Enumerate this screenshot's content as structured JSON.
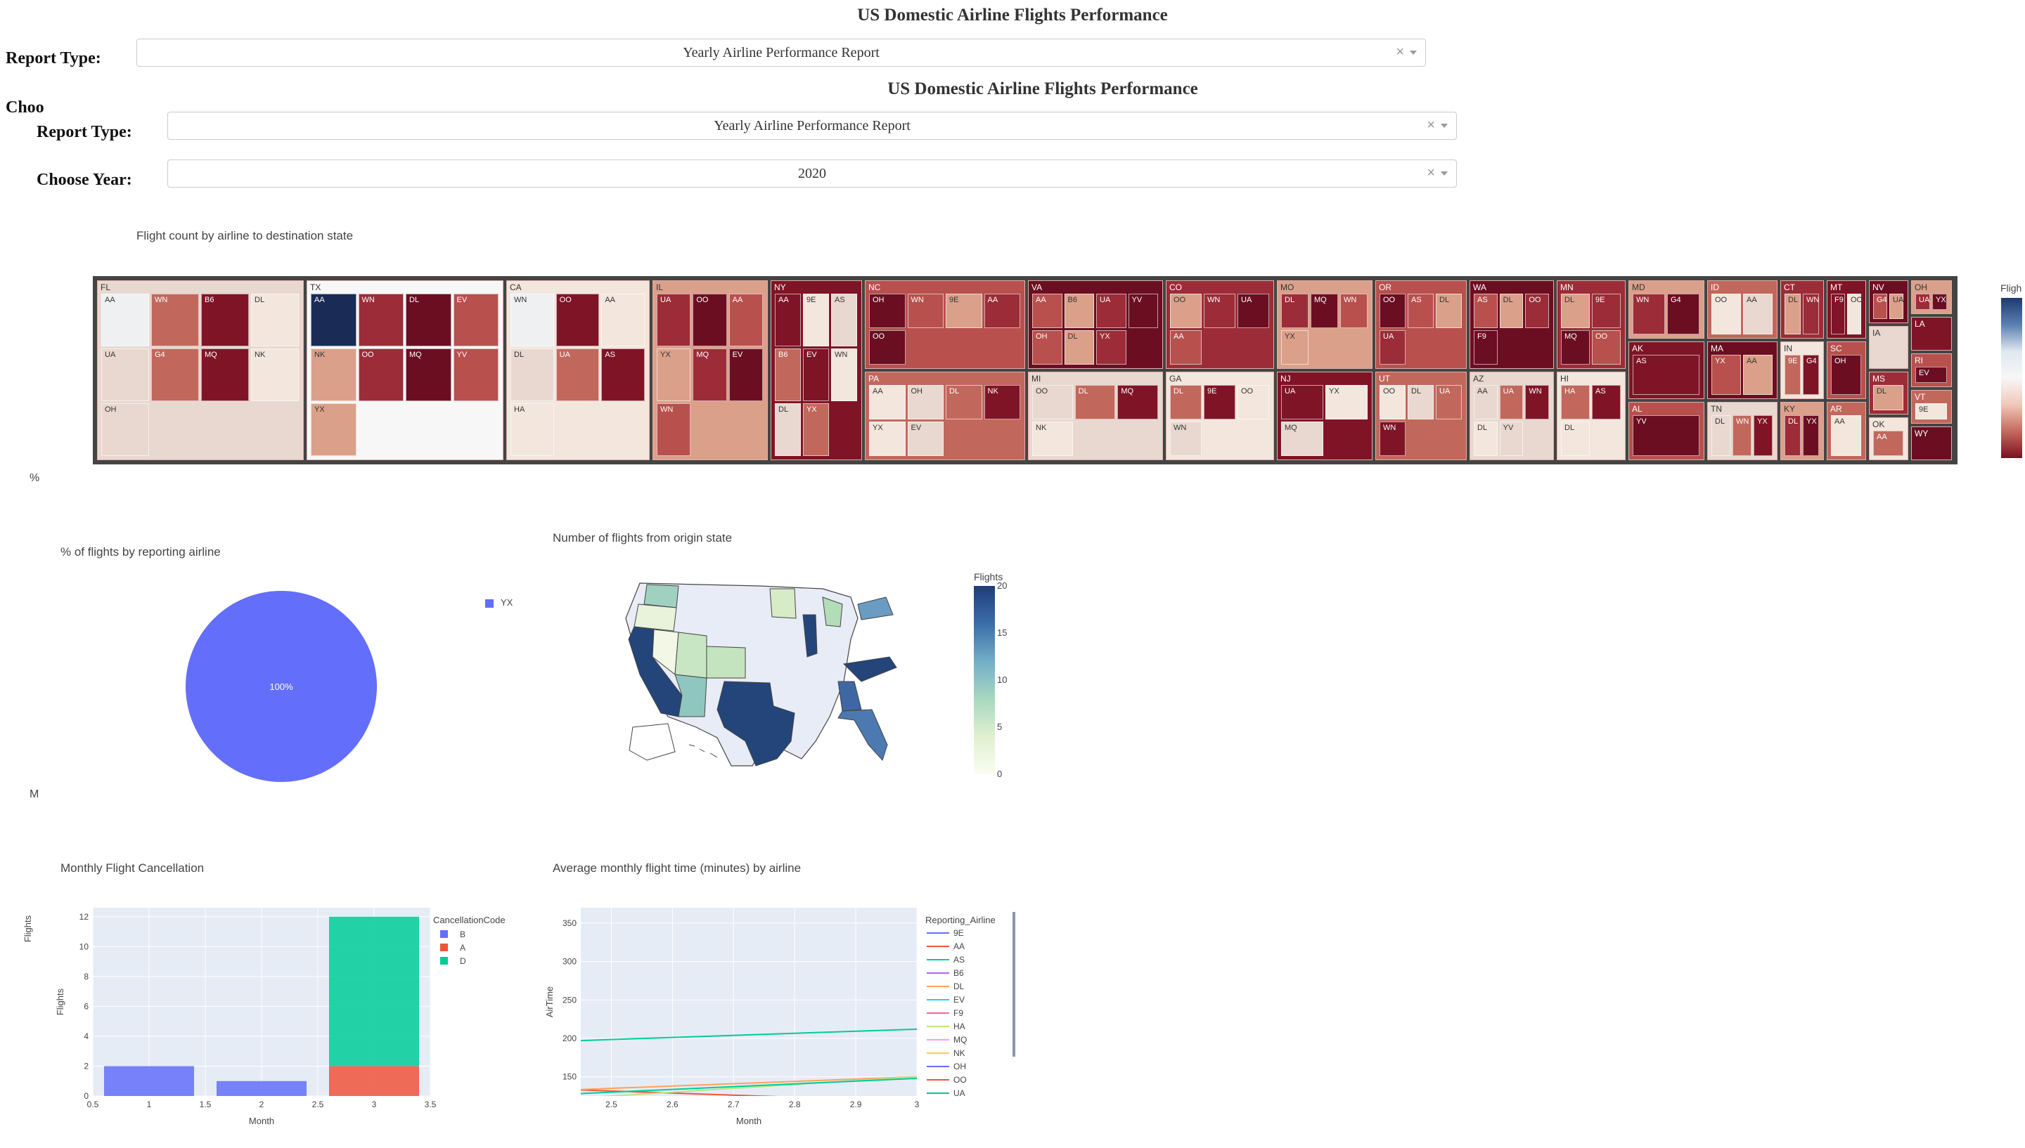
{
  "outer": {
    "title": "US Domestic Airline Flights Performance",
    "report_type_label": "Report Type:",
    "report_type_value": "Yearly Airline Performance Report",
    "choose_year_partial": "Choo"
  },
  "inner": {
    "title": "US Domestic Airline Flights Performance",
    "report_type_label": "Report Type:",
    "report_type_value": "Yearly Airline Performance Report",
    "choose_year_label": "Choose Year:",
    "choose_year_value": "2020",
    "clear_symbol": "×"
  },
  "side_fragments": {
    "a": "%",
    "b": "M"
  },
  "treemap": {
    "title": "Flight count by airline to destination state",
    "colorbar_label": "Fligh",
    "colors": {
      "frame": "#444444"
    },
    "states": [
      {
        "name": "FL",
        "airlines": [
          "AA",
          "WN",
          "B6",
          "DL",
          "UA",
          "G4",
          "MQ",
          "NK",
          "OH"
        ]
      },
      {
        "name": "TX",
        "airlines": [
          "AA",
          "WN",
          "DL",
          "EV",
          "NK",
          "OO",
          "MQ",
          "YV",
          "YX"
        ]
      },
      {
        "name": "CA",
        "airlines": [
          "WN",
          "OO",
          "AA",
          "DL",
          "UA",
          "AS",
          "HA"
        ]
      },
      {
        "name": "IL",
        "airlines": [
          "UA",
          "OO",
          "AA",
          "YX",
          "MQ",
          "EV",
          "WN"
        ]
      },
      {
        "name": "NY",
        "airlines": [
          "AA",
          "9E",
          "AS",
          "B6",
          "EV",
          "WN",
          "DL",
          "YX"
        ]
      },
      {
        "name": "NC",
        "airlines": [
          "OH",
          "WN",
          "9E",
          "AA",
          "OO"
        ]
      },
      {
        "name": "PA",
        "airlines": [
          "AA",
          "OH",
          "DL",
          "NK",
          "YX",
          "EV"
        ]
      },
      {
        "name": "VA",
        "airlines": [
          "AA",
          "B6",
          "UA",
          "YV",
          "OH",
          "DL",
          "YX"
        ]
      },
      {
        "name": "MI",
        "airlines": [
          "OO",
          "DL",
          "MQ",
          "NK"
        ]
      },
      {
        "name": "CO",
        "airlines": [
          "OO",
          "WN",
          "UA",
          "AA"
        ]
      },
      {
        "name": "GA",
        "airlines": [
          "DL",
          "9E",
          "OO",
          "WN"
        ]
      },
      {
        "name": "MO",
        "airlines": [
          "DL",
          "MQ",
          "WN",
          "YX"
        ]
      },
      {
        "name": "NJ",
        "airlines": [
          "UA",
          "YX",
          "MQ"
        ]
      },
      {
        "name": "OR",
        "airlines": [
          "OO",
          "AS",
          "DL",
          "UA"
        ]
      },
      {
        "name": "UT",
        "airlines": [
          "OO",
          "DL",
          "UA",
          "WN"
        ]
      },
      {
        "name": "WA",
        "airlines": [
          "AS",
          "DL",
          "OO",
          "F9"
        ]
      },
      {
        "name": "AZ",
        "airlines": [
          "AA",
          "UA",
          "WN",
          "DL",
          "YV"
        ]
      },
      {
        "name": "MN",
        "airlines": [
          "DL",
          "9E",
          "MQ",
          "OO"
        ]
      },
      {
        "name": "HI",
        "airlines": [
          "HA",
          "AS",
          "DL"
        ]
      },
      {
        "name": "MD",
        "airlines": [
          "WN",
          "G4"
        ]
      },
      {
        "name": "AK",
        "airlines": [
          "AS"
        ]
      },
      {
        "name": "AL",
        "airlines": [
          "YV"
        ]
      },
      {
        "name": "ID",
        "airlines": [
          "OO",
          "AA"
        ]
      },
      {
        "name": "MA",
        "airlines": [
          "YX",
          "AA"
        ]
      },
      {
        "name": "TN",
        "airlines": [
          "DL",
          "WN",
          "YX"
        ]
      },
      {
        "name": "CT",
        "airlines": [
          "DL",
          "WN"
        ]
      },
      {
        "name": "IN",
        "airlines": [
          "9E",
          "G4"
        ]
      },
      {
        "name": "KY",
        "airlines": [
          "DL",
          "YX"
        ]
      },
      {
        "name": "MT",
        "airlines": [
          "F9",
          "OO"
        ]
      },
      {
        "name": "SC",
        "airlines": [
          "OH"
        ]
      },
      {
        "name": "AR",
        "airlines": [
          "AA"
        ]
      },
      {
        "name": "NV",
        "airlines": [
          "G4",
          "UA"
        ]
      },
      {
        "name": "IA",
        "airlines": []
      },
      {
        "name": "MS",
        "airlines": [
          "DL"
        ]
      },
      {
        "name": "OK",
        "airlines": [
          "AA"
        ]
      },
      {
        "name": "OH",
        "airlines": [
          "UA",
          "YX"
        ]
      },
      {
        "name": "LA",
        "airlines": []
      },
      {
        "name": "RI",
        "airlines": [
          "EV"
        ]
      },
      {
        "name": "VT",
        "airlines": [
          "9E"
        ]
      },
      {
        "name": "WY",
        "airlines": []
      }
    ]
  },
  "pie": {
    "title": "% of flights by reporting airline",
    "slice_label": "100%",
    "legend_label": "YX",
    "color": "#636efa"
  },
  "map": {
    "title": "Number of flights from origin state",
    "colorbar_title": "Flights",
    "colorbar_ticks": [
      "20",
      "15",
      "10",
      "5",
      "0"
    ]
  },
  "chart_data": [
    {
      "type": "bar",
      "title": "Monthly Flight Cancellation",
      "xlabel": "Month",
      "ylabel": "Flights",
      "outer_ylabel": "Flights",
      "legend_title": "CancellationCode",
      "x": [
        1,
        2,
        3
      ],
      "series": [
        {
          "name": "B",
          "color": "#636efa",
          "values": [
            2,
            1,
            0
          ]
        },
        {
          "name": "A",
          "color": "#ef553b",
          "values": [
            0,
            0,
            2
          ]
        },
        {
          "name": "D",
          "color": "#00cc96",
          "values": [
            0,
            0,
            10
          ]
        }
      ],
      "xlim": [
        0.5,
        3.5
      ],
      "ylim": [
        0,
        12.6
      ],
      "xticks": [
        "0.5",
        "1",
        "1.5",
        "2",
        "2.5",
        "3",
        "3.5"
      ],
      "yticks": [
        "0",
        "2",
        "4",
        "6",
        "8",
        "10",
        "12"
      ]
    },
    {
      "type": "line",
      "title": "Average monthly flight time (minutes) by airline",
      "xlabel": "Month",
      "ylabel": "AirTime",
      "legend_title": "Reporting_Airline",
      "xlim": [
        2.45,
        3
      ],
      "ylim": [
        125,
        370
      ],
      "xticks": [
        "2.5",
        "2.6",
        "2.7",
        "2.8",
        "2.9",
        "3"
      ],
      "yticks": [
        "150",
        "200",
        "250",
        "300",
        "350"
      ],
      "series": [
        {
          "name": "9E",
          "color": "#636efa",
          "x": [
            2,
            3
          ],
          "y": [
            130,
            110
          ]
        },
        {
          "name": "AA",
          "color": "#ef553b",
          "x": [
            2,
            3
          ],
          "y": [
            145,
            118
          ]
        },
        {
          "name": "AS",
          "color": "#00cc96",
          "x": [
            2,
            3
          ],
          "y": [
            185,
            212
          ]
        },
        {
          "name": "B6",
          "color": "#ab63fa",
          "x": [
            2,
            3
          ],
          "y": [
            132,
            112
          ]
        },
        {
          "name": "DL",
          "color": "#ffa15a",
          "x": [
            2,
            3
          ],
          "y": [
            120,
            150
          ]
        },
        {
          "name": "EV",
          "color": "#19d3f3",
          "x": [
            2,
            3
          ],
          "y": [
            108,
            115
          ]
        },
        {
          "name": "F9",
          "color": "#ff6692",
          "x": [
            2,
            3
          ],
          "y": [
            115,
            122
          ]
        },
        {
          "name": "HA",
          "color": "#b6e880",
          "x": [
            2,
            3
          ],
          "y": [
            100,
            150
          ]
        },
        {
          "name": "MQ",
          "color": "#ff97ff",
          "x": [
            2,
            3
          ],
          "y": [
            102,
            108
          ]
        },
        {
          "name": "NK",
          "color": "#fecb52",
          "x": [
            2,
            3
          ],
          "y": [
            110,
            118
          ]
        },
        {
          "name": "OH",
          "color": "#636efa",
          "x": [
            2,
            3
          ],
          "y": [
            105,
            112
          ]
        },
        {
          "name": "OO",
          "color": "#ef553b",
          "x": [
            2,
            3
          ],
          "y": [
            103,
            106
          ]
        },
        {
          "name": "UA",
          "color": "#00cc96",
          "x": [
            2,
            3
          ],
          "y": [
            112,
            148
          ]
        }
      ]
    }
  ]
}
